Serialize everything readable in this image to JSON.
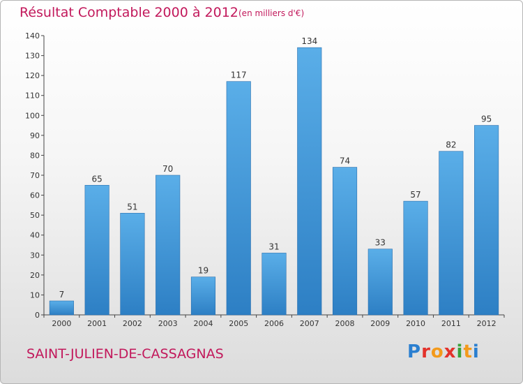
{
  "chart_data": {
    "type": "bar",
    "title": "Résultat Comptable 2000 à 2012",
    "subtitle": "(en milliers d'€)",
    "categories": [
      "2000",
      "2001",
      "2002",
      "2003",
      "2004",
      "2005",
      "2006",
      "2007",
      "2008",
      "2009",
      "2010",
      "2011",
      "2012"
    ],
    "values": [
      7,
      65,
      51,
      70,
      19,
      117,
      31,
      134,
      74,
      33,
      57,
      82,
      95
    ],
    "xlabel": "",
    "ylabel": "",
    "ylim": [
      0,
      140
    ],
    "yticks": [
      0,
      10,
      20,
      30,
      40,
      50,
      60,
      70,
      80,
      90,
      100,
      110,
      120,
      130,
      140
    ],
    "grid": false,
    "bar_color": "#3f95db"
  },
  "footer": {
    "town": "SAINT-JULIEN-DE-CASSAGNAS",
    "logo_letters": [
      "P",
      "r",
      "o",
      "x",
      "i",
      "t",
      "i"
    ],
    "logo_colors": [
      "#2a7fd0",
      "#e3322b",
      "#f39a1b",
      "#e3322b",
      "#3aa13a",
      "#f39a1b",
      "#2a7fd0"
    ]
  }
}
